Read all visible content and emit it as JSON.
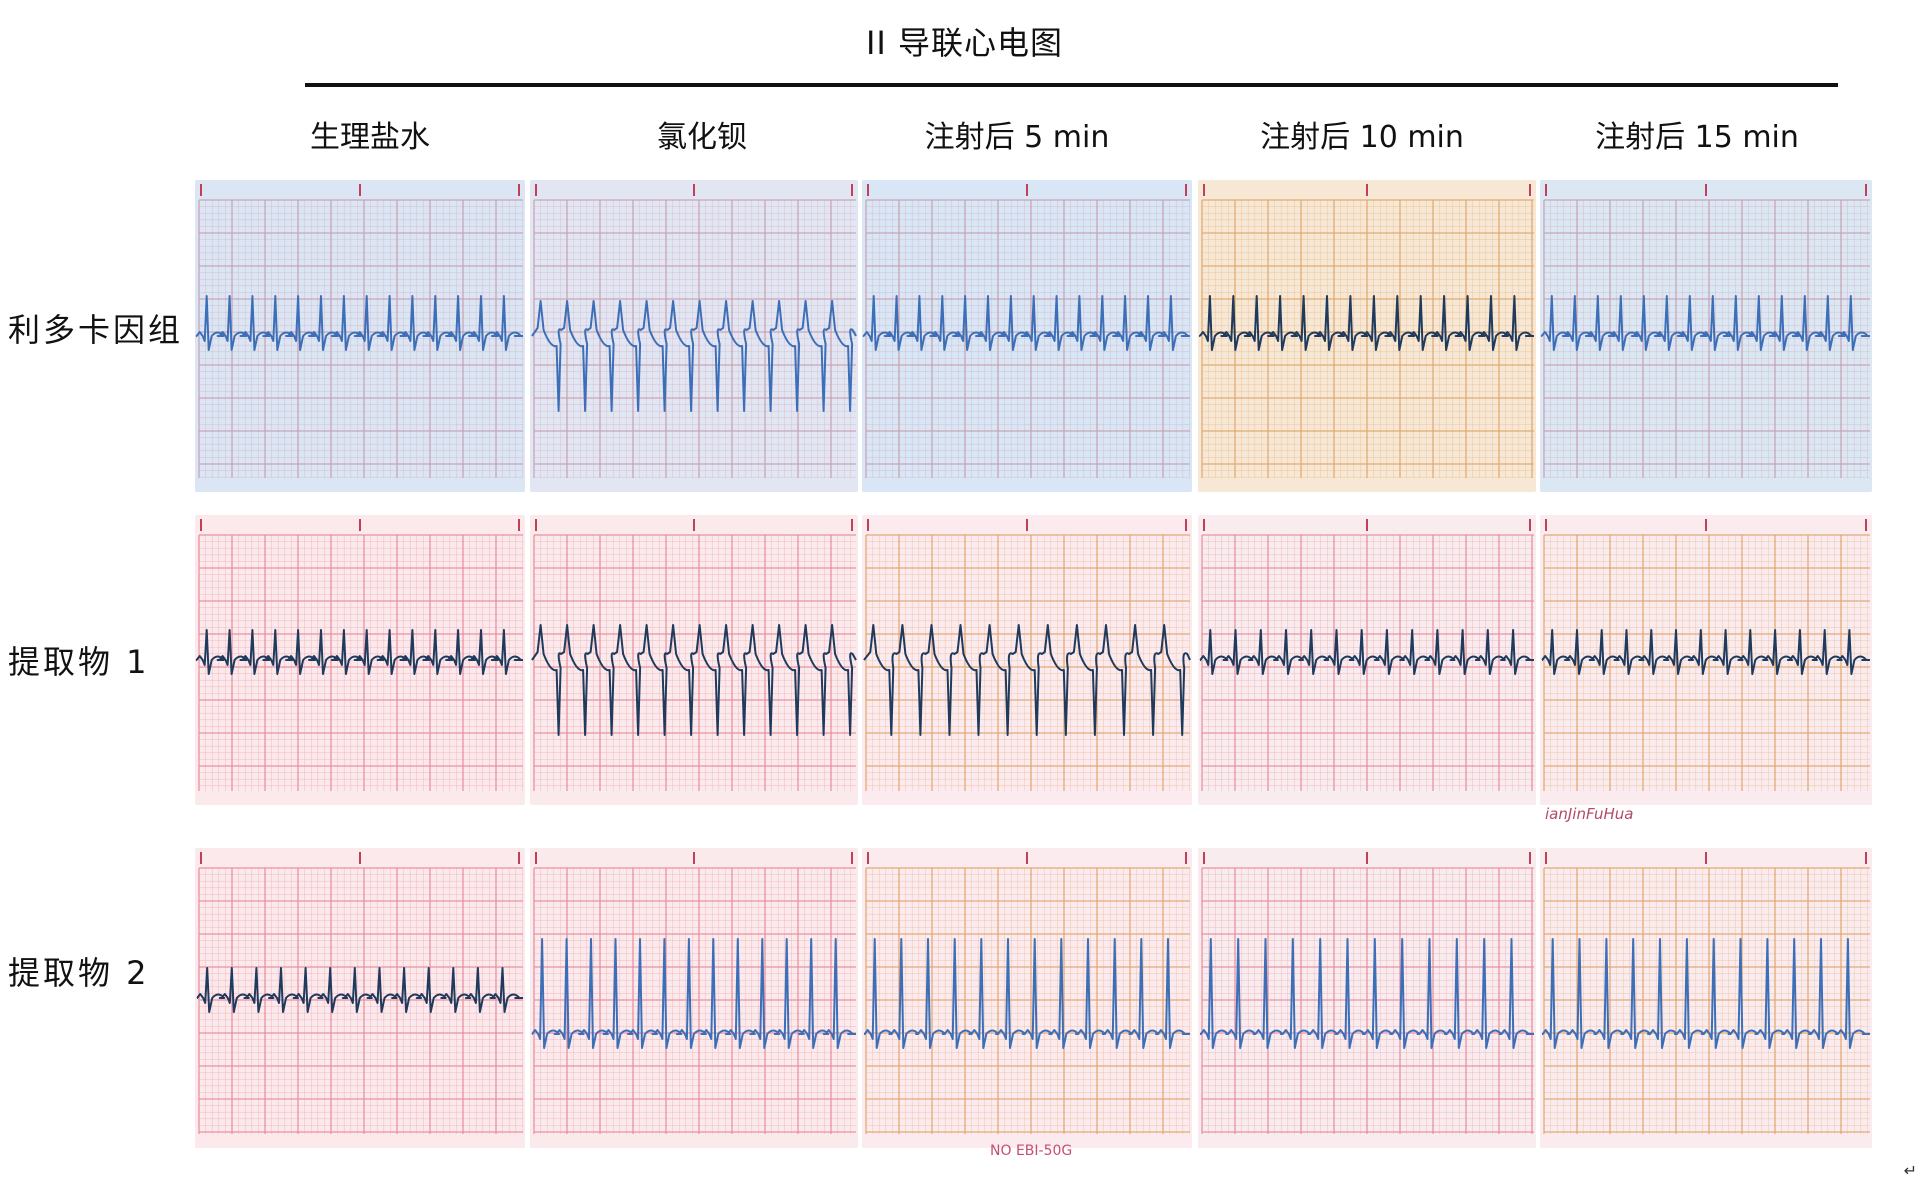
{
  "figure": {
    "title": "II 导联心电图",
    "columns": [
      "生理盐水",
      "氯化钡",
      "注射后 5 min",
      "注射后 10 min",
      "注射后 15 min"
    ],
    "rows": [
      {
        "label": "利多卡因组",
        "palette": "blue",
        "panels": [
          {
            "rhythm": "normal",
            "beats": 14
          },
          {
            "rhythm": "arrhythmia",
            "beats": 12
          },
          {
            "rhythm": "normal",
            "beats": 14
          },
          {
            "rhythm": "normal",
            "beats": 14
          },
          {
            "rhythm": "normal",
            "beats": 14
          }
        ]
      },
      {
        "label": "提取物 1",
        "palette": "pink",
        "panels": [
          {
            "rhythm": "normal",
            "beats": 14
          },
          {
            "rhythm": "arrhythmia",
            "beats": 12
          },
          {
            "rhythm": "arrhythmia",
            "beats": 11
          },
          {
            "rhythm": "normal",
            "beats": 13
          },
          {
            "rhythm": "normal",
            "beats": 13
          }
        ]
      },
      {
        "label": "提取物 2",
        "palette": "pink",
        "panels": [
          {
            "rhythm": "normal",
            "beats": 13
          },
          {
            "rhythm": "normal",
            "beats": 13
          },
          {
            "rhythm": "normal",
            "beats": 12
          },
          {
            "rhythm": "normal",
            "beats": 12
          },
          {
            "rhythm": "normal",
            "beats": 12
          }
        ]
      }
    ],
    "paper_marks": {
      "brand_text": "ianJinFuHua",
      "model_text": "NO EBI-50G"
    },
    "colors": {
      "trace_dark": "#1f3a5c",
      "trace_blue": "#3d6fb8",
      "grid_pink": "#e88a9a",
      "grid_blue": "#c7a0b0",
      "grid_orange": "#e2a46a"
    },
    "return_mark": "↵"
  }
}
